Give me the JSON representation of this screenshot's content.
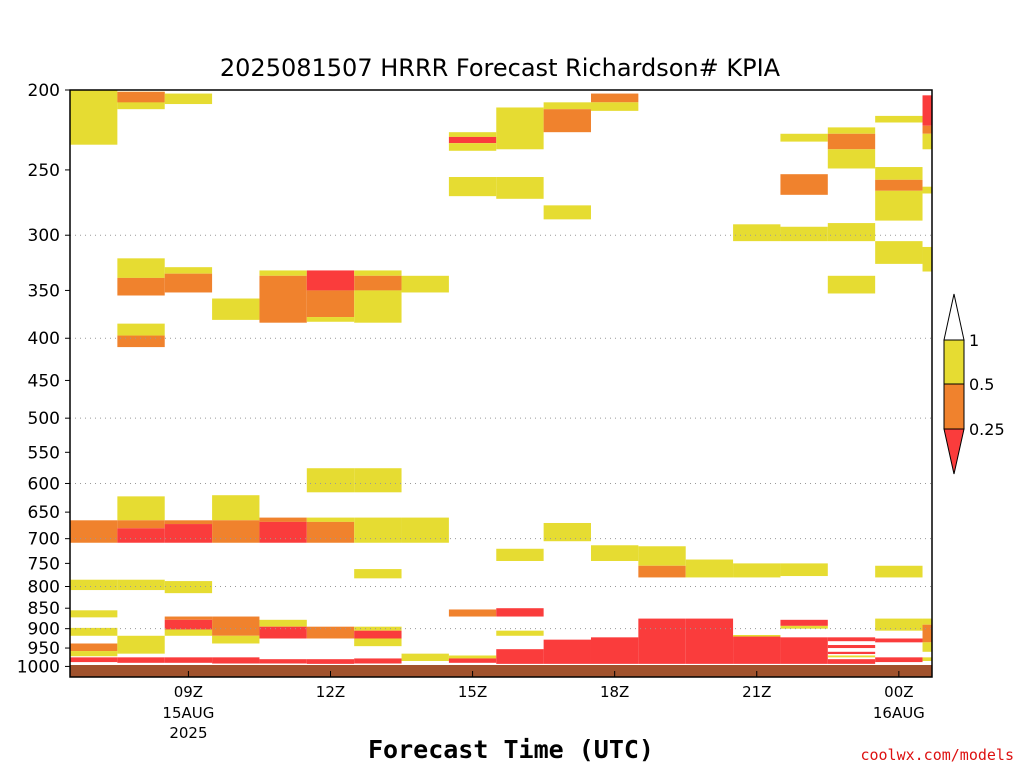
{
  "page": {
    "credit": "coolwx.com/models"
  },
  "colors": {
    "yellow": "#e6dc32",
    "orange": "#f0822d",
    "red": "#fa3c3c",
    "ground": "#a0522d",
    "grid": "#999999"
  },
  "chart_data": {
    "type": "heatmap",
    "title": "2025081507 HRRR Forecast Richardson# KPIA",
    "xlabel": "Forecast Time (UTC)",
    "ylabel": "",
    "x_range_hours": [
      6.5,
      24.7
    ],
    "y_axis": "pressure (hPa), log scale, inverted",
    "ylim": [
      1030,
      200
    ],
    "y_ticks": [
      200,
      250,
      300,
      350,
      400,
      450,
      500,
      550,
      600,
      650,
      700,
      750,
      800,
      850,
      900,
      950,
      1000
    ],
    "grid_levels": [
      300,
      400,
      500,
      600,
      700,
      800,
      900
    ],
    "x_ticks": [
      {
        "hour": 9,
        "label": "09Z",
        "sub": [
          "15AUG",
          "2025"
        ]
      },
      {
        "hour": 12,
        "label": "12Z",
        "sub": []
      },
      {
        "hour": 15,
        "label": "15Z",
        "sub": []
      },
      {
        "hour": 18,
        "label": "18Z",
        "sub": []
      },
      {
        "hour": 21,
        "label": "21Z",
        "sub": []
      },
      {
        "hour": 24,
        "label": "00Z",
        "sub": [
          "16AUG"
        ]
      }
    ],
    "colorbar": {
      "levels": [
        "1",
        "0.5",
        "0.25"
      ],
      "bins": [
        {
          "range": "> 1",
          "color": "white"
        },
        {
          "range": "0.5 - 1",
          "color": "yellow"
        },
        {
          "range": "0.25 - 0.5",
          "color": "orange"
        },
        {
          "range": "< 0.25",
          "color": "red"
        }
      ]
    },
    "ground_level": 1000,
    "cells": [
      {
        "t": 7,
        "p1": 200,
        "p2": 233,
        "c": "y"
      },
      {
        "t": 7,
        "p1": 665,
        "p2": 708,
        "c": "o"
      },
      {
        "t": 7,
        "p1": 785,
        "p2": 808,
        "c": "y"
      },
      {
        "t": 7,
        "p1": 855,
        "p2": 872,
        "c": "y"
      },
      {
        "t": 7,
        "p1": 898,
        "p2": 918,
        "c": "y"
      },
      {
        "t": 7,
        "p1": 938,
        "p2": 958,
        "c": "o"
      },
      {
        "t": 7,
        "p1": 958,
        "p2": 972,
        "c": "y"
      },
      {
        "t": 7,
        "p1": 975,
        "p2": 988,
        "c": "r"
      },
      {
        "t": 8,
        "p1": 201,
        "p2": 211,
        "c": "y"
      },
      {
        "t": 8,
        "p1": 201,
        "p2": 207,
        "c": "o"
      },
      {
        "t": 8,
        "p1": 320,
        "p2": 338,
        "c": "y"
      },
      {
        "t": 8,
        "p1": 338,
        "p2": 355,
        "c": "o"
      },
      {
        "t": 8,
        "p1": 384,
        "p2": 397,
        "c": "y"
      },
      {
        "t": 8,
        "p1": 397,
        "p2": 410,
        "c": "o"
      },
      {
        "t": 8,
        "p1": 622,
        "p2": 665,
        "c": "y"
      },
      {
        "t": 8,
        "p1": 665,
        "p2": 680,
        "c": "o"
      },
      {
        "t": 8,
        "p1": 680,
        "p2": 708,
        "c": "r"
      },
      {
        "t": 8,
        "p1": 785,
        "p2": 808,
        "c": "y"
      },
      {
        "t": 8,
        "p1": 918,
        "p2": 965,
        "c": "y"
      },
      {
        "t": 8,
        "p1": 975,
        "p2": 990,
        "c": "r"
      },
      {
        "t": 9,
        "p1": 202,
        "p2": 208,
        "c": "y"
      },
      {
        "t": 9,
        "p1": 328,
        "p2": 334,
        "c": "y"
      },
      {
        "t": 9,
        "p1": 334,
        "p2": 352,
        "c": "o"
      },
      {
        "t": 9,
        "p1": 665,
        "p2": 672,
        "c": "o"
      },
      {
        "t": 9,
        "p1": 672,
        "p2": 708,
        "c": "r"
      },
      {
        "t": 9,
        "p1": 788,
        "p2": 815,
        "c": "y"
      },
      {
        "t": 9,
        "p1": 870,
        "p2": 878,
        "c": "o"
      },
      {
        "t": 9,
        "p1": 878,
        "p2": 902,
        "c": "r"
      },
      {
        "t": 9,
        "p1": 902,
        "p2": 918,
        "c": "y"
      },
      {
        "t": 9,
        "p1": 975,
        "p2": 990,
        "c": "r"
      },
      {
        "t": 10,
        "p1": 358,
        "p2": 380,
        "c": "y"
      },
      {
        "t": 10,
        "p1": 620,
        "p2": 665,
        "c": "y"
      },
      {
        "t": 10,
        "p1": 665,
        "p2": 708,
        "c": "o"
      },
      {
        "t": 10,
        "p1": 870,
        "p2": 918,
        "c": "o"
      },
      {
        "t": 10,
        "p1": 918,
        "p2": 938,
        "c": "y"
      },
      {
        "t": 10,
        "p1": 975,
        "p2": 992,
        "c": "r"
      },
      {
        "t": 11,
        "p1": 331,
        "p2": 336,
        "c": "y"
      },
      {
        "t": 11,
        "p1": 336,
        "p2": 383,
        "c": "o"
      },
      {
        "t": 11,
        "p1": 660,
        "p2": 668,
        "c": "o"
      },
      {
        "t": 11,
        "p1": 668,
        "p2": 708,
        "c": "r"
      },
      {
        "t": 11,
        "p1": 878,
        "p2": 895,
        "c": "y"
      },
      {
        "t": 11,
        "p1": 895,
        "p2": 925,
        "c": "r"
      },
      {
        "t": 11,
        "p1": 980,
        "p2": 992,
        "c": "r"
      },
      {
        "t": 12,
        "p1": 331,
        "p2": 350,
        "c": "r"
      },
      {
        "t": 12,
        "p1": 350,
        "p2": 377,
        "c": "o"
      },
      {
        "t": 12,
        "p1": 377,
        "p2": 382,
        "c": "y"
      },
      {
        "t": 12,
        "p1": 575,
        "p2": 615,
        "c": "y"
      },
      {
        "t": 12,
        "p1": 660,
        "p2": 668,
        "c": "y"
      },
      {
        "t": 12,
        "p1": 668,
        "p2": 708,
        "c": "o"
      },
      {
        "t": 12,
        "p1": 895,
        "p2": 925,
        "c": "o"
      },
      {
        "t": 12,
        "p1": 980,
        "p2": 995,
        "c": "r"
      },
      {
        "t": 13,
        "p1": 331,
        "p2": 336,
        "c": "y"
      },
      {
        "t": 13,
        "p1": 336,
        "p2": 350,
        "c": "o"
      },
      {
        "t": 13,
        "p1": 350,
        "p2": 383,
        "c": "y"
      },
      {
        "t": 13,
        "p1": 575,
        "p2": 615,
        "c": "y"
      },
      {
        "t": 13,
        "p1": 660,
        "p2": 708,
        "c": "y"
      },
      {
        "t": 13,
        "p1": 762,
        "p2": 782,
        "c": "y"
      },
      {
        "t": 13,
        "p1": 895,
        "p2": 905,
        "c": "y"
      },
      {
        "t": 13,
        "p1": 905,
        "p2": 925,
        "c": "r"
      },
      {
        "t": 13,
        "p1": 925,
        "p2": 945,
        "c": "y"
      },
      {
        "t": 13,
        "p1": 978,
        "p2": 992,
        "c": "r"
      },
      {
        "t": 14,
        "p1": 336,
        "p2": 352,
        "c": "y"
      },
      {
        "t": 14,
        "p1": 660,
        "p2": 708,
        "c": "y"
      },
      {
        "t": 14,
        "p1": 965,
        "p2": 985,
        "c": "y"
      },
      {
        "t": 15,
        "p1": 225,
        "p2": 228,
        "c": "y"
      },
      {
        "t": 15,
        "p1": 228,
        "p2": 232,
        "c": "r"
      },
      {
        "t": 15,
        "p1": 232,
        "p2": 237,
        "c": "y"
      },
      {
        "t": 15,
        "p1": 255,
        "p2": 269,
        "c": "y"
      },
      {
        "t": 15,
        "p1": 853,
        "p2": 870,
        "c": "o"
      },
      {
        "t": 15,
        "p1": 970,
        "p2": 978,
        "c": "y"
      },
      {
        "t": 15,
        "p1": 978,
        "p2": 990,
        "c": "r"
      },
      {
        "t": 16,
        "p1": 210,
        "p2": 236,
        "c": "y"
      },
      {
        "t": 16,
        "p1": 255,
        "p2": 271,
        "c": "y"
      },
      {
        "t": 16,
        "p1": 720,
        "p2": 745,
        "c": "y"
      },
      {
        "t": 16,
        "p1": 850,
        "p2": 870,
        "c": "r"
      },
      {
        "t": 16,
        "p1": 905,
        "p2": 918,
        "c": "y"
      },
      {
        "t": 16,
        "p1": 953,
        "p2": 995,
        "c": "r"
      },
      {
        "t": 17,
        "p1": 207,
        "p2": 211,
        "c": "y"
      },
      {
        "t": 17,
        "p1": 211,
        "p2": 225,
        "c": "o"
      },
      {
        "t": 17,
        "p1": 276,
        "p2": 287,
        "c": "y"
      },
      {
        "t": 17,
        "p1": 670,
        "p2": 705,
        "c": "y"
      },
      {
        "t": 17,
        "p1": 928,
        "p2": 998,
        "c": "r"
      },
      {
        "t": 18,
        "p1": 202,
        "p2": 207,
        "c": "o"
      },
      {
        "t": 18,
        "p1": 207,
        "p2": 212,
        "c": "y"
      },
      {
        "t": 18,
        "p1": 713,
        "p2": 745,
        "c": "y"
      },
      {
        "t": 18,
        "p1": 922,
        "p2": 998,
        "c": "r"
      },
      {
        "t": 19,
        "p1": 715,
        "p2": 755,
        "c": "y"
      },
      {
        "t": 19,
        "p1": 755,
        "p2": 780,
        "c": "o"
      },
      {
        "t": 19,
        "p1": 875,
        "p2": 998,
        "c": "r"
      },
      {
        "t": 20,
        "p1": 742,
        "p2": 780,
        "c": "y"
      },
      {
        "t": 20,
        "p1": 875,
        "p2": 995,
        "c": "r"
      },
      {
        "t": 21,
        "p1": 291,
        "p2": 305,
        "c": "y"
      },
      {
        "t": 21,
        "p1": 750,
        "p2": 780,
        "c": "y"
      },
      {
        "t": 21,
        "p1": 916,
        "p2": 920,
        "c": "y"
      },
      {
        "t": 21,
        "p1": 920,
        "p2": 995,
        "c": "r"
      },
      {
        "t": 22,
        "p1": 226,
        "p2": 231,
        "c": "y"
      },
      {
        "t": 22,
        "p1": 253,
        "p2": 268,
        "c": "o"
      },
      {
        "t": 22,
        "p1": 293,
        "p2": 305,
        "c": "y"
      },
      {
        "t": 22,
        "p1": 750,
        "p2": 777,
        "c": "y"
      },
      {
        "t": 22,
        "p1": 878,
        "p2": 893,
        "c": "r"
      },
      {
        "t": 22,
        "p1": 893,
        "p2": 900,
        "c": "y"
      },
      {
        "t": 22,
        "p1": 922,
        "p2": 995,
        "c": "r"
      },
      {
        "t": 23,
        "p1": 222,
        "p2": 226,
        "c": "y"
      },
      {
        "t": 23,
        "p1": 226,
        "p2": 236,
        "c": "o"
      },
      {
        "t": 23,
        "p1": 236,
        "p2": 249,
        "c": "y"
      },
      {
        "t": 23,
        "p1": 290,
        "p2": 305,
        "c": "y"
      },
      {
        "t": 23,
        "p1": 336,
        "p2": 353,
        "c": "y"
      },
      {
        "t": 23,
        "p1": 922,
        "p2": 932,
        "c": "r"
      },
      {
        "t": 23,
        "p1": 942,
        "p2": 950,
        "c": "r"
      },
      {
        "t": 23,
        "p1": 960,
        "p2": 966,
        "c": "r"
      },
      {
        "t": 23,
        "p1": 970,
        "p2": 975,
        "c": "y"
      },
      {
        "t": 23,
        "p1": 980,
        "p2": 995,
        "c": "r"
      },
      {
        "t": 24,
        "p1": 215,
        "p2": 219,
        "c": "y"
      },
      {
        "t": 24,
        "p1": 248,
        "p2": 257,
        "c": "y"
      },
      {
        "t": 24,
        "p1": 257,
        "p2": 265,
        "c": "o"
      },
      {
        "t": 24,
        "p1": 265,
        "p2": 288,
        "c": "y"
      },
      {
        "t": 24,
        "p1": 305,
        "p2": 325,
        "c": "y"
      },
      {
        "t": 24,
        "p1": 755,
        "p2": 780,
        "c": "y"
      },
      {
        "t": 24,
        "p1": 875,
        "p2": 905,
        "c": "y"
      },
      {
        "t": 24,
        "p1": 925,
        "p2": 935,
        "c": "r"
      },
      {
        "t": 24,
        "p1": 975,
        "p2": 988,
        "c": "r"
      },
      {
        "t": 25,
        "p1": 203,
        "p2": 221,
        "c": "r"
      },
      {
        "t": 25,
        "p1": 221,
        "p2": 226,
        "c": "o"
      },
      {
        "t": 25,
        "p1": 226,
        "p2": 236,
        "c": "y"
      },
      {
        "t": 25,
        "p1": 262,
        "p2": 267,
        "c": "y"
      },
      {
        "t": 25,
        "p1": 310,
        "p2": 332,
        "c": "y"
      },
      {
        "t": 25,
        "p1": 875,
        "p2": 890,
        "c": "y"
      },
      {
        "t": 25,
        "p1": 890,
        "p2": 935,
        "c": "o"
      },
      {
        "t": 25,
        "p1": 935,
        "p2": 960,
        "c": "y"
      },
      {
        "t": 25,
        "p1": 975,
        "p2": 985,
        "c": "y"
      }
    ]
  }
}
